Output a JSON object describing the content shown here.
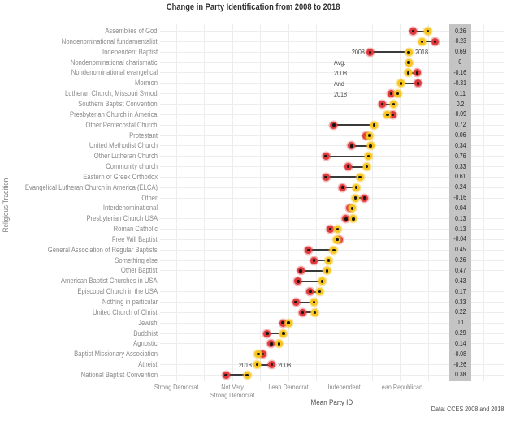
{
  "title": "Change in Party Identification from 2008 to 2018",
  "caption": "Data: CCES 2008 and 2018",
  "axes": {
    "y_title": "Religious Tradition",
    "x_title": "Mean Party ID",
    "x_ticks": [
      {
        "value": 1,
        "label": "Strong Democrat"
      },
      {
        "value": 2,
        "label": "Not Very\nStrong Democrat"
      },
      {
        "value": 3,
        "label": "Lean Democrat"
      },
      {
        "value": 4,
        "label": "Independent"
      },
      {
        "value": 5,
        "label": "Lean Republican"
      }
    ]
  },
  "colors": {
    "dot_2008": "#e0393b",
    "dot_2008_halo": "rgba(224,57,59,0.35)",
    "dot_2018": "#f7c51e",
    "dot_2018_halo": "rgba(247,197,30,0.45)",
    "dot_center": "#141414",
    "connector": "#3a3a3a",
    "gridline": "#ececec",
    "band_bg": "#c4c4c4",
    "band_text": "#262626",
    "dashed_line": "#6b6b6b",
    "label_text": "#8a8a8a",
    "title_text": "#333333"
  },
  "chart_data": {
    "type": "dumbbell",
    "title": "Change in Party Identification from 2008 to 2018",
    "x_axis": {
      "title": "Mean Party ID",
      "tick_values": [
        1,
        2,
        3,
        4,
        5
      ],
      "tick_labels": [
        "Strong Democrat",
        "Not Very Strong Democrat",
        "Lean Democrat",
        "Independent",
        "Lean Republican"
      ],
      "gridline_step": 0.5,
      "range": [
        1,
        6.5
      ]
    },
    "y_axis": {
      "title": "Religious Tradition"
    },
    "series": [
      {
        "name": "2008",
        "color_key": "dot_2008"
      },
      {
        "name": "2018",
        "color_key": "dot_2018"
      }
    ],
    "avg_line": {
      "value": 3.75,
      "label_lines": [
        "Avg.",
        "2008",
        "And",
        "2018"
      ],
      "label_rows": [
        3,
        4,
        5,
        6
      ]
    },
    "rows": [
      {
        "label": "Assemblies of God",
        "mean_2008": 5.23,
        "mean_2018": 5.49,
        "change": "0.26"
      },
      {
        "label": "Nondenominational fundamentalist",
        "mean_2008": 5.62,
        "mean_2018": 5.39,
        "change": "-0.23"
      },
      {
        "label": "Independent Baptist",
        "mean_2008": 4.46,
        "mean_2018": 5.15,
        "change": "0.69",
        "show_year_labels": true
      },
      {
        "label": "Nondenominational charismatic",
        "mean_2008": 5.15,
        "mean_2018": 5.15,
        "change": "0"
      },
      {
        "label": "Nondenominational evangelical",
        "mean_2008": 5.3,
        "mean_2018": 5.14,
        "change": "-0.16"
      },
      {
        "label": "Mormon",
        "mean_2008": 5.32,
        "mean_2018": 5.01,
        "change": "-0.31"
      },
      {
        "label": "Lutheran Church, Missouri Synod",
        "mean_2008": 4.84,
        "mean_2018": 4.95,
        "change": "0.11"
      },
      {
        "label": "Southern Baptist Convention",
        "mean_2008": 4.68,
        "mean_2018": 4.88,
        "change": "0.2"
      },
      {
        "label": "Presbyterian Church in America",
        "mean_2008": 4.86,
        "mean_2018": 4.77,
        "change": "-0.09"
      },
      {
        "label": "Other Pentecostal Church",
        "mean_2008": 3.81,
        "mean_2018": 4.53,
        "change": "0.72"
      },
      {
        "label": "Protestant",
        "mean_2008": 4.39,
        "mean_2018": 4.45,
        "change": "0.06"
      },
      {
        "label": "United Methodist Church",
        "mean_2008": 4.13,
        "mean_2018": 4.47,
        "change": "0.34"
      },
      {
        "label": "Other Lutheran Church",
        "mean_2008": 3.67,
        "mean_2018": 4.43,
        "change": "0.76"
      },
      {
        "label": "Community church",
        "mean_2008": 4.07,
        "mean_2018": 4.4,
        "change": "0.33"
      },
      {
        "label": "Eastern or Greek Orthodox",
        "mean_2008": 3.67,
        "mean_2018": 4.28,
        "change": "0.61"
      },
      {
        "label": "Evangelical Lutheran Church in America (ELCA)",
        "mean_2008": 3.97,
        "mean_2018": 4.21,
        "change": "0.24"
      },
      {
        "label": "Other",
        "mean_2008": 4.36,
        "mean_2018": 4.2,
        "change": "-0.16"
      },
      {
        "label": "Interdenominational",
        "mean_2008": 4.1,
        "mean_2018": 4.14,
        "change": "0.04"
      },
      {
        "label": "Presbyterian Church USA",
        "mean_2008": 4.03,
        "mean_2018": 4.16,
        "change": "0.13"
      },
      {
        "label": "Roman Catholic",
        "mean_2008": 3.75,
        "mean_2018": 3.88,
        "change": "0.13"
      },
      {
        "label": "Free Will Baptist",
        "mean_2008": 3.91,
        "mean_2018": 3.87,
        "change": "-0.04"
      },
      {
        "label": "General Association of Regular Baptists",
        "mean_2008": 3.36,
        "mean_2018": 3.81,
        "change": "0.45"
      },
      {
        "label": "Something else",
        "mean_2008": 3.46,
        "mean_2018": 3.72,
        "change": "0.26"
      },
      {
        "label": "Other Baptist",
        "mean_2008": 3.22,
        "mean_2018": 3.69,
        "change": "0.47"
      },
      {
        "label": "American Baptist Churches in USA",
        "mean_2008": 3.17,
        "mean_2018": 3.6,
        "change": "0.43"
      },
      {
        "label": "Episcopal Church in the USA",
        "mean_2008": 3.39,
        "mean_2018": 3.56,
        "change": "0.17"
      },
      {
        "label": "Nothing in particular",
        "mean_2008": 3.13,
        "mean_2018": 3.46,
        "change": "0.33"
      },
      {
        "label": "United Church of Christ",
        "mean_2008": 3.25,
        "mean_2018": 3.47,
        "change": "0.22"
      },
      {
        "label": "Jewish",
        "mean_2008": 2.9,
        "mean_2018": 3.0,
        "change": "0.1"
      },
      {
        "label": "Buddhist",
        "mean_2008": 2.62,
        "mean_2018": 2.91,
        "change": "0.29"
      },
      {
        "label": "Agnostic",
        "mean_2008": 2.69,
        "mean_2018": 2.83,
        "change": "0.14"
      },
      {
        "label": "Baptist Missionary Association",
        "mean_2008": 2.54,
        "mean_2018": 2.46,
        "change": "-0.08"
      },
      {
        "label": "Atheist",
        "mean_2008": 2.7,
        "mean_2018": 2.44,
        "change": "-0.26",
        "show_year_labels": true
      },
      {
        "label": "National Baptist Convention",
        "mean_2008": 1.88,
        "mean_2018": 2.26,
        "change": "0.38"
      }
    ]
  }
}
